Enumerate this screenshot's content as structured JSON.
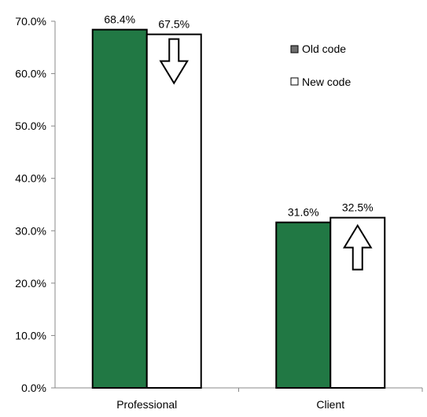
{
  "chart_data": {
    "type": "bar",
    "title": "",
    "xlabel": "",
    "ylabel": "",
    "categories": [
      "Professional",
      "Client"
    ],
    "series": [
      {
        "name": "Old code",
        "values": [
          68.4,
          31.6
        ],
        "labels": [
          "68.4%",
          "31.6%"
        ],
        "color": "#217844"
      },
      {
        "name": "New code",
        "values": [
          67.5,
          32.5
        ],
        "labels": [
          "67.5%",
          "32.5%"
        ],
        "color": "#ffffff"
      }
    ],
    "ylim": [
      0,
      70
    ],
    "yticks": [
      0,
      10,
      20,
      30,
      40,
      50,
      60,
      70
    ],
    "ytick_labels": [
      "0.0%",
      "10.0%",
      "20.0%",
      "30.0%",
      "40.0%",
      "50.0%",
      "60.0%",
      "70.0%"
    ],
    "grid": false,
    "legend": {
      "position": "top-right",
      "entries": [
        "Old code",
        "New code"
      ]
    },
    "annotations": [
      {
        "type": "arrow",
        "direction": "down",
        "category": "Professional",
        "series": "New code"
      },
      {
        "type": "arrow",
        "direction": "up",
        "category": "Client",
        "series": "New code"
      }
    ]
  }
}
